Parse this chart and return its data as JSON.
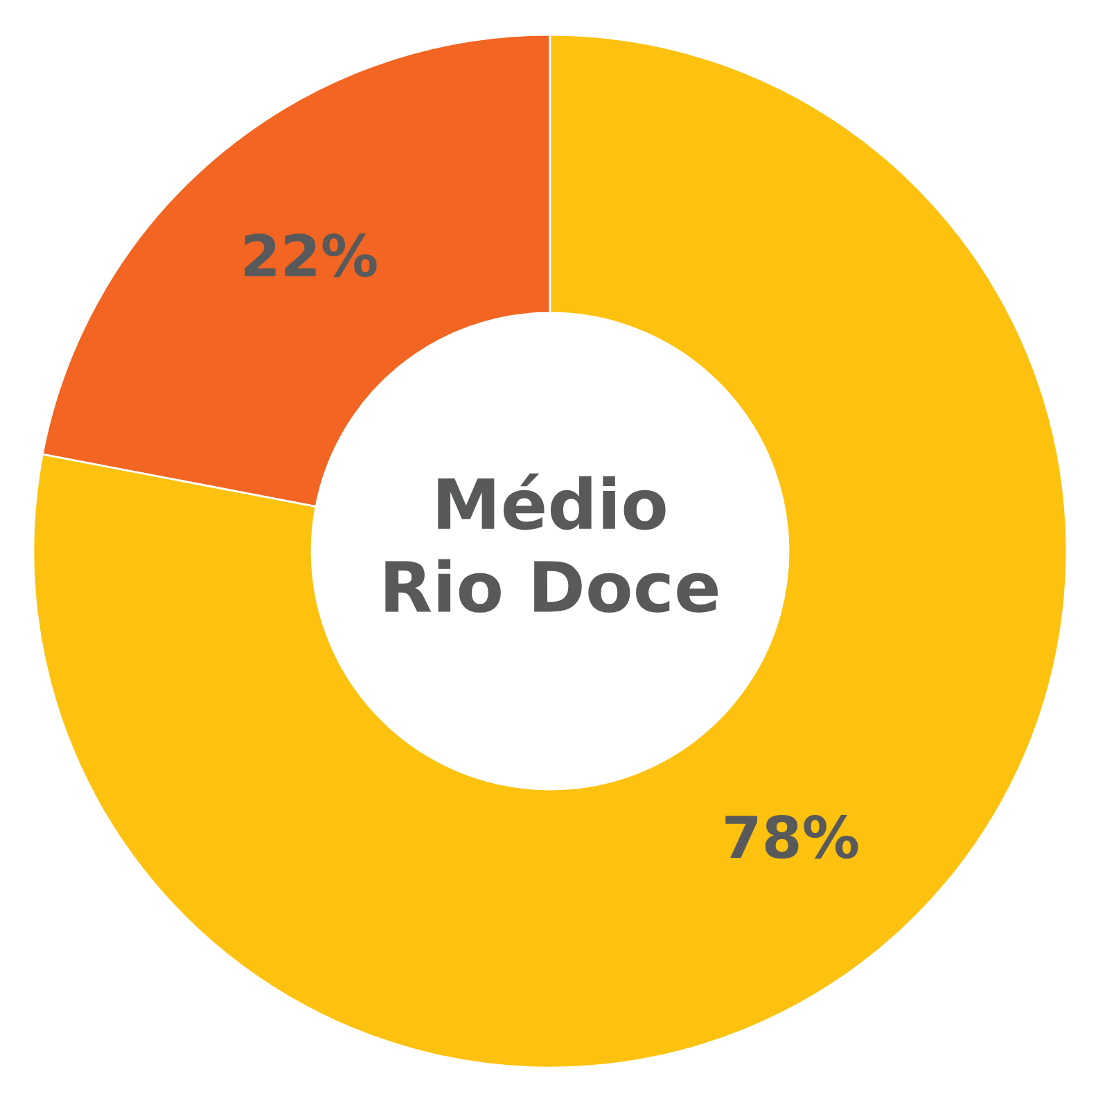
{
  "chart_data": {
    "type": "donut",
    "title": "Médio\nRio Doce",
    "categories": [
      null,
      null
    ],
    "values": [
      22,
      78
    ],
    "colors": [
      "#f26522",
      "#fdc20f"
    ],
    "value_labels": [
      "22%",
      "78%"
    ]
  }
}
